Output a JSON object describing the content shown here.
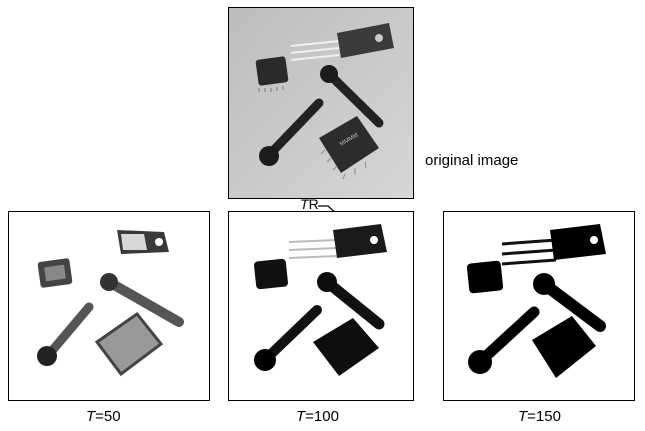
{
  "figure": {
    "original_label": "original image",
    "tr_prefix": "T",
    "tr_suffix": "R",
    "panels": [
      {
        "t": "T",
        "eq": "=50"
      },
      {
        "t": "T",
        "eq": "=100"
      },
      {
        "t": "T",
        "eq": "=150"
      }
    ]
  }
}
